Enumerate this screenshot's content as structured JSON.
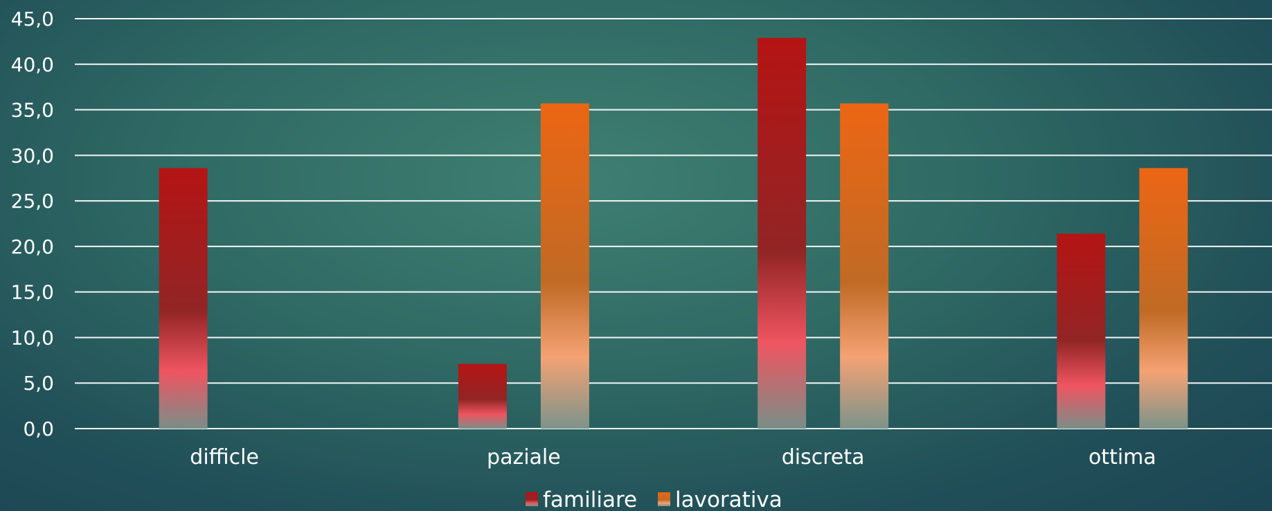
{
  "chart_data": {
    "type": "bar",
    "categories": [
      "difficle",
      "paziale",
      "discreta",
      "ottima"
    ],
    "series": [
      {
        "name": "familiare",
        "values": [
          28.6,
          7.1,
          42.9,
          21.4
        ],
        "color": "#b01a1a"
      },
      {
        "name": "lavorativa",
        "values": [
          0.0,
          35.7,
          35.7,
          28.6
        ],
        "color": "#e8661a"
      }
    ],
    "ylim": [
      0,
      45
    ],
    "yticks": [
      "0,0",
      "5,0",
      "10,0",
      "15,0",
      "20,0",
      "25,0",
      "30,0",
      "35,0",
      "40,0",
      "45,0"
    ],
    "grid": true,
    "legend_position": "bottom"
  }
}
